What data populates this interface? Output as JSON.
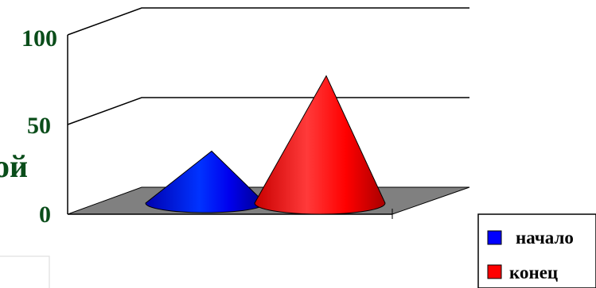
{
  "chart_data": {
    "type": "cone",
    "title": "",
    "xlabel": "",
    "ylabel": "",
    "ylim": [
      0,
      100
    ],
    "yticks": [
      "0",
      "50",
      "100"
    ],
    "series": [
      {
        "name": "начало",
        "value": 29,
        "color": "#0000ff"
      },
      {
        "name": "конец",
        "value": 71,
        "color": "#ff0000"
      }
    ],
    "partial_label": "ой",
    "grid": true,
    "legend": {
      "position": "bottom-right"
    },
    "colors": {
      "tick_text": "#0a4d1a",
      "floor": "#808080",
      "axis": "#000000"
    }
  }
}
